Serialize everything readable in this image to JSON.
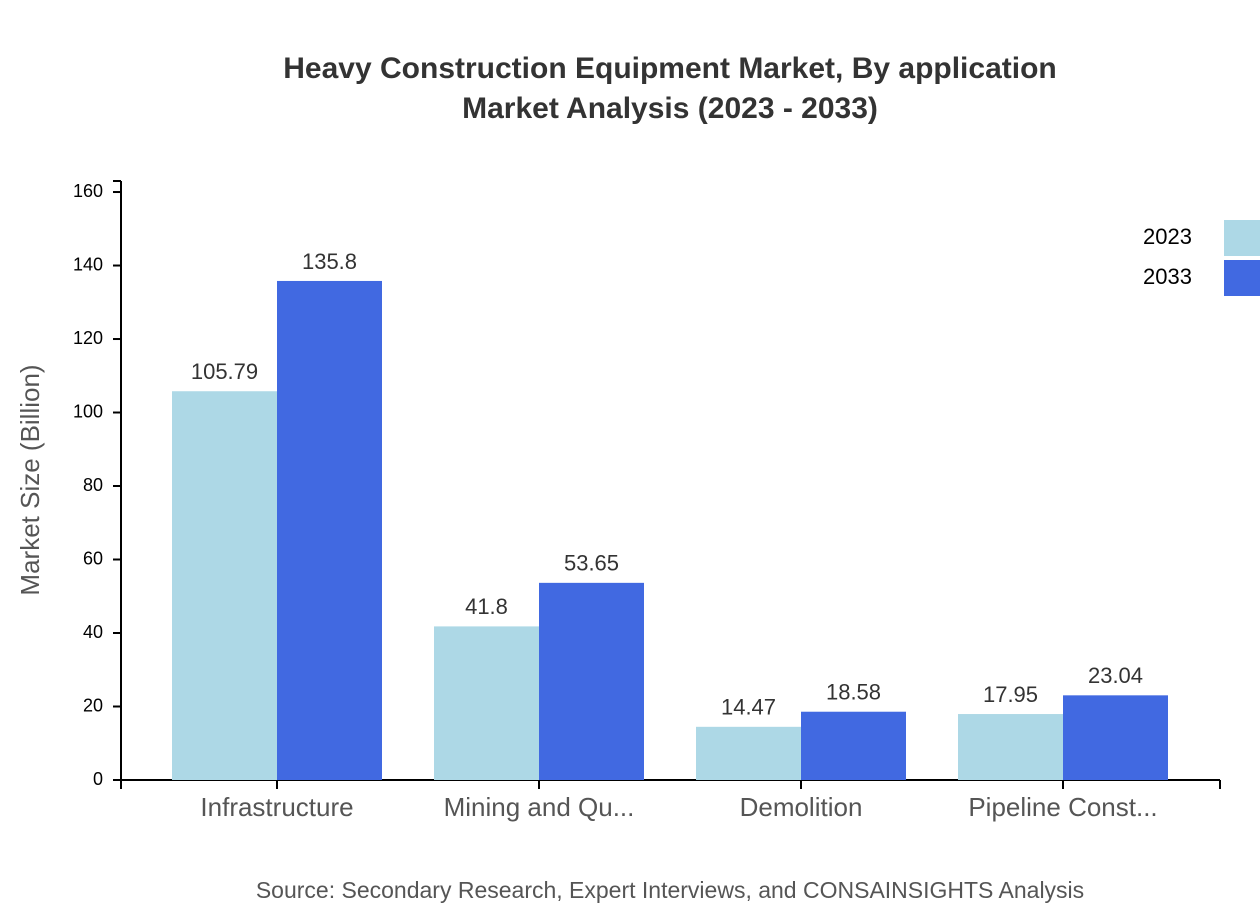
{
  "chart_data": {
    "type": "bar",
    "title": "Heavy Construction Equipment Market, By application",
    "subtitle": "Market Analysis (2023 - 2033)",
    "y_label": "Market Size (Billion)",
    "source": "Source: Secondary Research, Expert Interviews, and CONSAINSIGHTS Analysis",
    "categories": [
      "Infrastructure",
      "Mining and Qu...",
      "Demolition",
      "Pipeline Const..."
    ],
    "series": [
      {
        "name": "2023",
        "color": "#add8e6",
        "values": [
          105.79,
          41.8,
          14.47,
          17.95
        ]
      },
      {
        "name": "2033",
        "color": "#4169e1",
        "values": [
          135.8,
          53.65,
          18.58,
          23.04
        ]
      }
    ],
    "ylim": [
      0,
      163
    ],
    "yticks": [
      0,
      20,
      40,
      60,
      80,
      100,
      120,
      140,
      160
    ],
    "legend": "top-right"
  }
}
